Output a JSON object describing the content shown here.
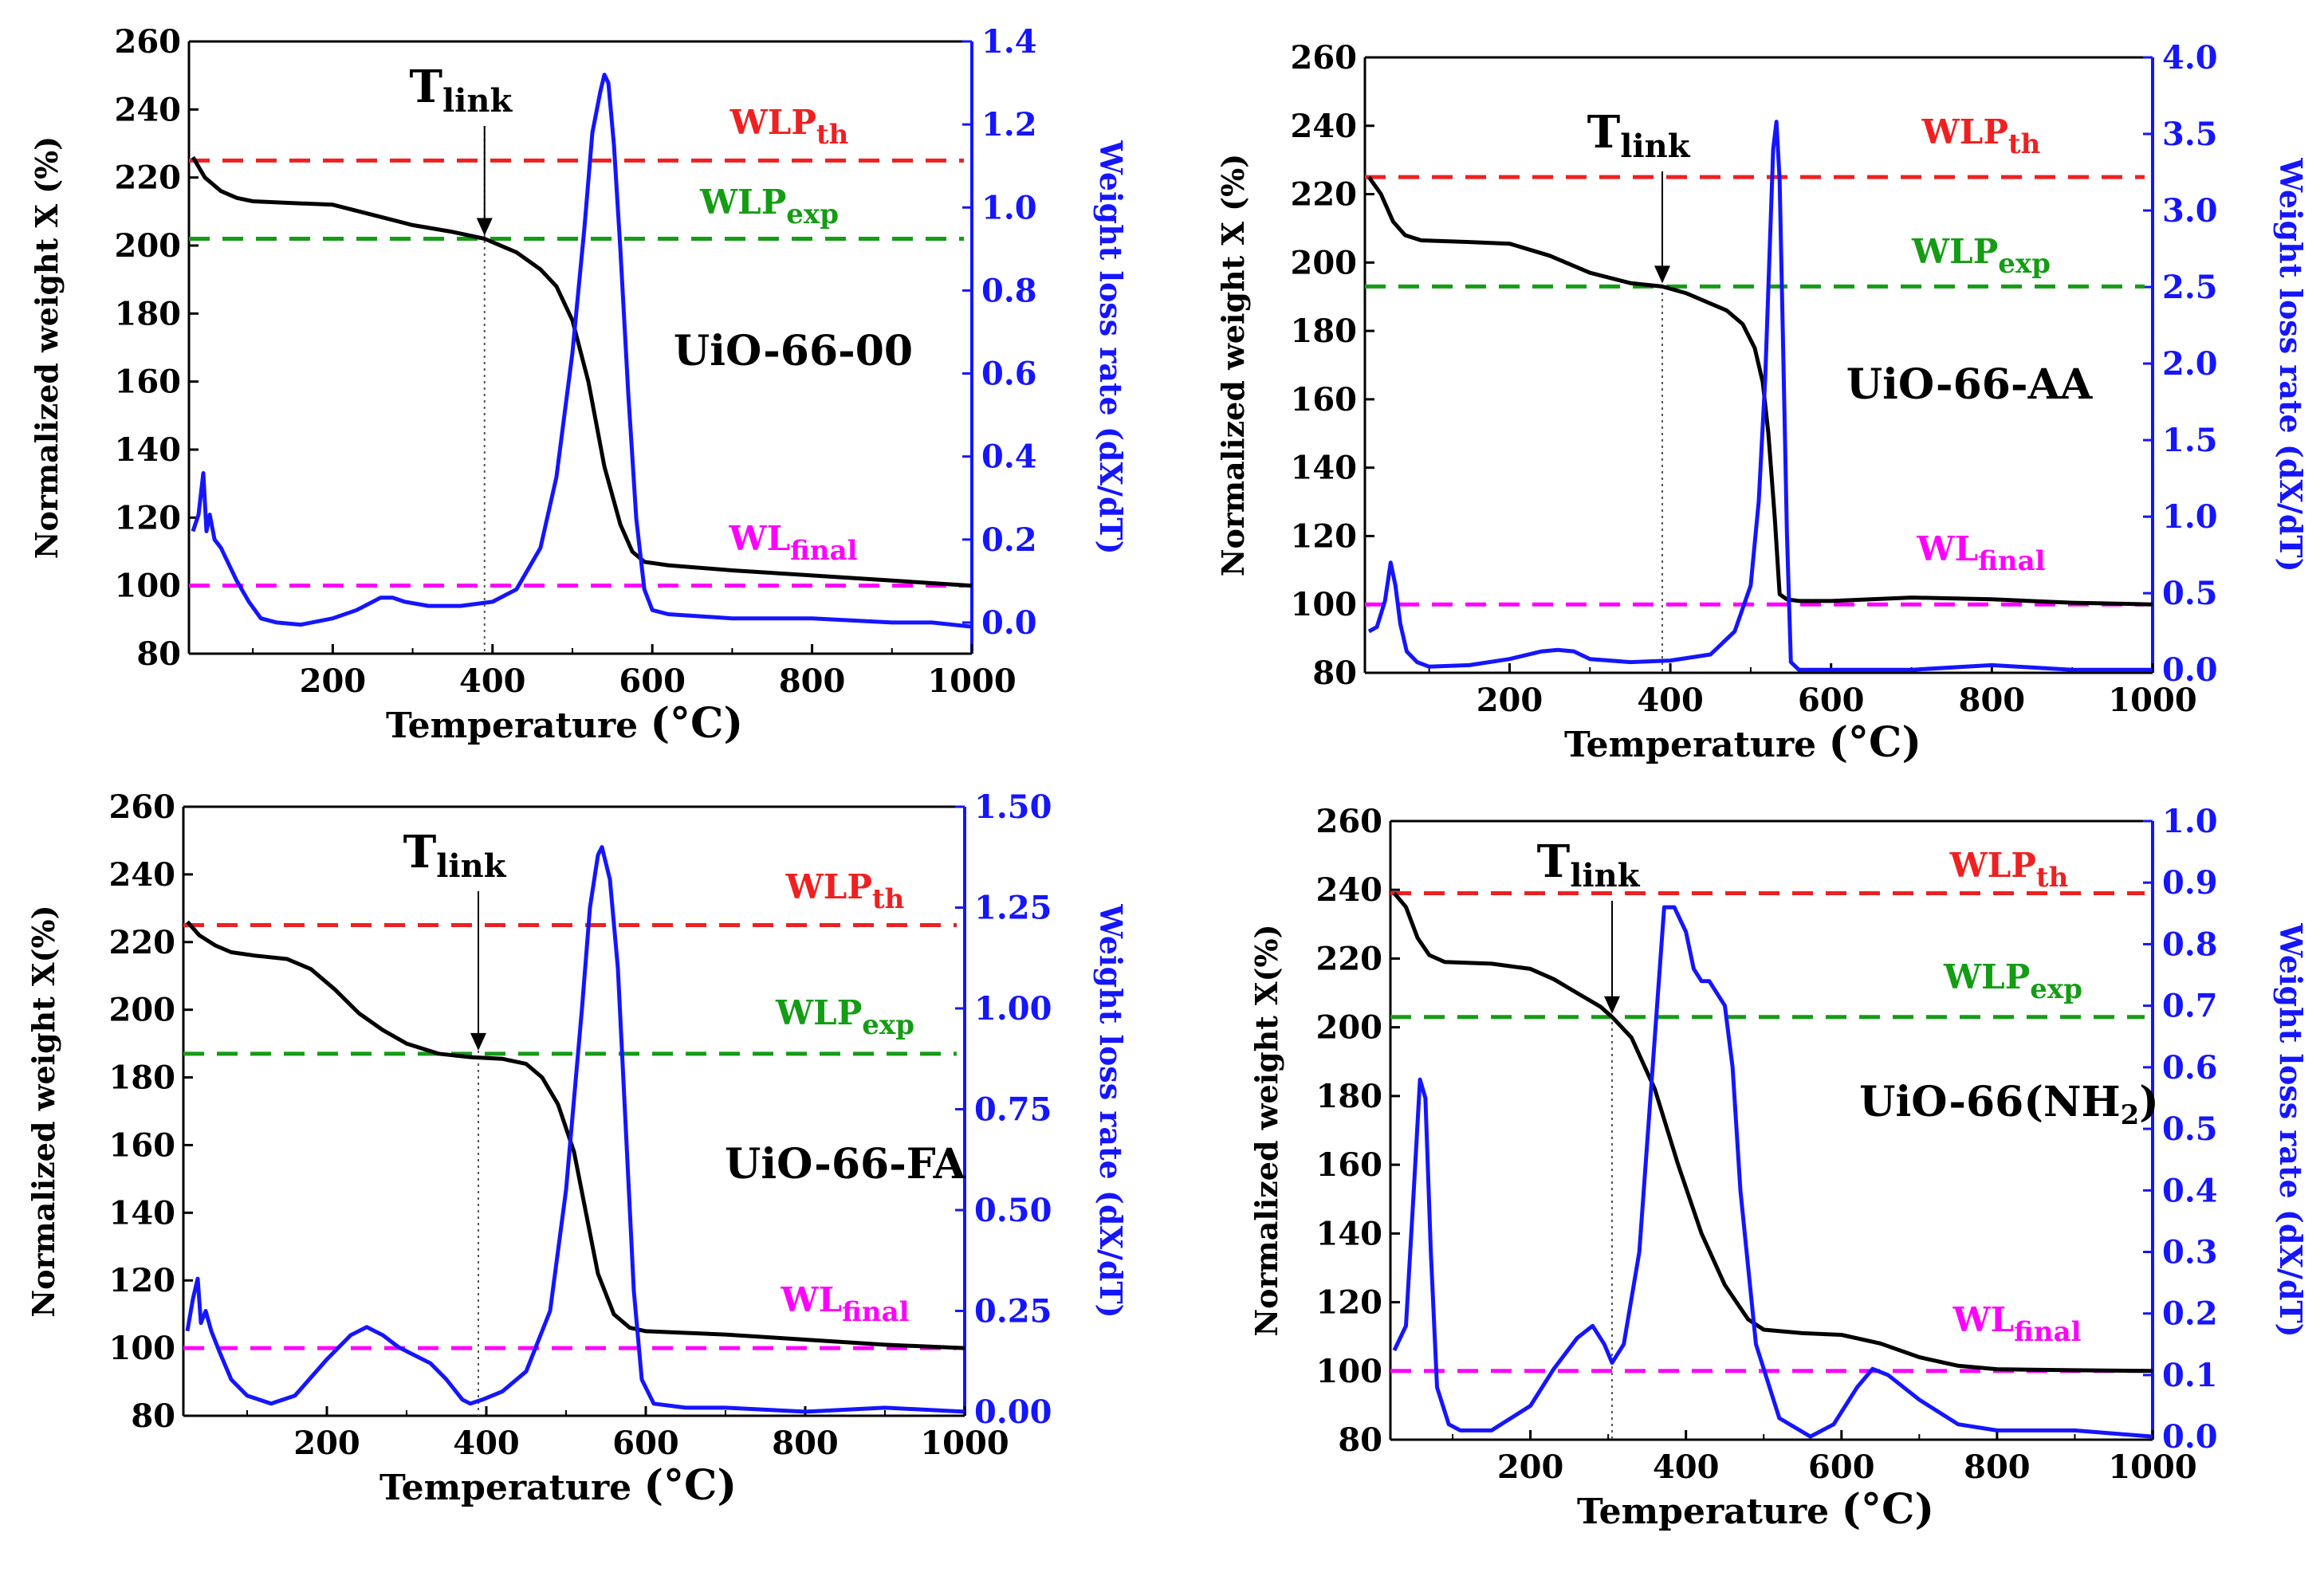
{
  "chart_data": [
    {
      "type": "line",
      "name": "UiO-66-00",
      "xlabel": "Temperature",
      "xunit": "(°C)",
      "ylabel": "Normalized weight X (%)",
      "y2label": "Weight loss rate (dX/dT)",
      "xlim": [
        20,
        1000
      ],
      "ylim": [
        80,
        260
      ],
      "y2lim": [
        -0.075,
        1.4
      ],
      "xticks": [
        "200",
        "400",
        "600",
        "800",
        "1000"
      ],
      "yticks": [
        "80",
        "100",
        "120",
        "140",
        "160",
        "180",
        "200",
        "220",
        "240",
        "260"
      ],
      "y2ticks": [
        "0.0",
        "0.2",
        "0.4",
        "0.6",
        "0.8",
        "1.0",
        "1.2",
        "1.4"
      ],
      "lines": {
        "WLP_th": 225,
        "WLP_exp": 202,
        "WL_final": 100
      },
      "t_link": 390,
      "labels": {
        "tlink": "T",
        "tlink_sub": "link",
        "wlpth": "WLP",
        "wlpth_sub": "th",
        "wlpexp": "WLP",
        "wlpexp_sub": "exp",
        "wlfinal": "WL",
        "wlfinal_sub": "final"
      },
      "series": [
        {
          "name": "Normalized weight",
          "axis": "left",
          "color": "#000000",
          "x": [
            25,
            40,
            60,
            80,
            100,
            150,
            200,
            250,
            300,
            350,
            390,
            430,
            460,
            480,
            500,
            520,
            540,
            560,
            575,
            590,
            620,
            700,
            800,
            900,
            1000
          ],
          "y": [
            226,
            220,
            216,
            214,
            213,
            212.5,
            212,
            209,
            206,
            204,
            202,
            198,
            193,
            188,
            178,
            160,
            135,
            118,
            110,
            107,
            106,
            104.5,
            103,
            101.5,
            100
          ]
        },
        {
          "name": "Weight loss rate",
          "axis": "right",
          "color": "#1515ff",
          "x": [
            25,
            32,
            38,
            42,
            46,
            52,
            60,
            70,
            80,
            95,
            110,
            130,
            160,
            200,
            230,
            260,
            275,
            290,
            320,
            360,
            400,
            430,
            460,
            480,
            500,
            515,
            525,
            535,
            540,
            545,
            552,
            560,
            570,
            580,
            590,
            600,
            620,
            700,
            800,
            900,
            950,
            1000
          ],
          "y": [
            0.22,
            0.26,
            0.36,
            0.22,
            0.26,
            0.2,
            0.18,
            0.14,
            0.1,
            0.05,
            0.01,
            0.0,
            -0.005,
            0.01,
            0.03,
            0.06,
            0.06,
            0.05,
            0.04,
            0.04,
            0.05,
            0.08,
            0.18,
            0.35,
            0.65,
            0.95,
            1.18,
            1.28,
            1.32,
            1.3,
            1.15,
            0.9,
            0.55,
            0.25,
            0.08,
            0.03,
            0.02,
            0.01,
            0.01,
            0.0,
            0.0,
            -0.01
          ]
        }
      ]
    },
    {
      "type": "line",
      "name": "UiO-66-AA",
      "xlabel": "Temperature",
      "xunit": "(°C)",
      "ylabel": "Normalized weight X (%)",
      "y2label": "Weight loss rate (dX/dT)",
      "xlim": [
        20,
        1000
      ],
      "ylim": [
        80,
        260
      ],
      "y2lim": [
        -0.02,
        4.0
      ],
      "xticks": [
        "200",
        "400",
        "600",
        "800",
        "1000"
      ],
      "yticks": [
        "80",
        "100",
        "120",
        "140",
        "160",
        "180",
        "200",
        "220",
        "240",
        "260"
      ],
      "y2ticks": [
        "0.0",
        "0.5",
        "1.0",
        "1.5",
        "2.0",
        "2.5",
        "3.0",
        "3.5",
        "4.0"
      ],
      "lines": {
        "WLP_th": 225,
        "WLP_exp": 193,
        "WL_final": 100
      },
      "t_link": 390,
      "labels": {
        "tlink": "T",
        "tlink_sub": "link",
        "wlpth": "WLP",
        "wlpth_sub": "th",
        "wlpexp": "WLP",
        "wlpexp_sub": "exp",
        "wlfinal": "WL",
        "wlfinal_sub": "final"
      },
      "series": [
        {
          "name": "Normalized weight",
          "axis": "left",
          "color": "#000000",
          "x": [
            25,
            40,
            55,
            70,
            90,
            150,
            200,
            250,
            300,
            350,
            390,
            420,
            450,
            470,
            490,
            505,
            515,
            522,
            530,
            536,
            545,
            560,
            600,
            700,
            800,
            900,
            1000
          ],
          "y": [
            225,
            220,
            212,
            208,
            206.5,
            206,
            205.5,
            202,
            197,
            194,
            193,
            191,
            188,
            186,
            182,
            175,
            165,
            150,
            125,
            103,
            101.5,
            101,
            101,
            102,
            101.5,
            100.5,
            100
          ]
        },
        {
          "name": "Weight loss rate",
          "axis": "right",
          "color": "#1515ff",
          "x": [
            25,
            35,
            45,
            52,
            58,
            64,
            72,
            85,
            100,
            150,
            200,
            240,
            260,
            280,
            300,
            350,
            400,
            450,
            480,
            500,
            510,
            518,
            524,
            528,
            532,
            536,
            540,
            545,
            550,
            560,
            600,
            700,
            800,
            900,
            1000
          ],
          "y": [
            0.25,
            0.28,
            0.45,
            0.7,
            0.55,
            0.3,
            0.12,
            0.05,
            0.02,
            0.03,
            0.07,
            0.12,
            0.13,
            0.12,
            0.07,
            0.05,
            0.06,
            0.1,
            0.25,
            0.55,
            1.1,
            1.9,
            2.8,
            3.4,
            3.58,
            3.2,
            2.2,
            0.9,
            0.05,
            0.0,
            0.0,
            0.0,
            0.03,
            0.0,
            0.0
          ]
        }
      ]
    },
    {
      "type": "line",
      "name": "UiO-66-FA",
      "xlabel": "Temperature",
      "xunit": "(°C)",
      "ylabel": "Normalized weight X(%)",
      "y2label": "Weight loss rate (dX/dT)",
      "xlim": [
        20,
        1000
      ],
      "ylim": [
        80,
        260
      ],
      "y2lim": [
        -0.01,
        1.5
      ],
      "xticks": [
        "200",
        "400",
        "600",
        "800",
        "1000"
      ],
      "yticks": [
        "80",
        "100",
        "120",
        "140",
        "160",
        "180",
        "200",
        "220",
        "240",
        "260"
      ],
      "y2ticks": [
        "0.00",
        "0.25",
        "0.50",
        "0.75",
        "1.00",
        "1.25",
        "1.50"
      ],
      "lines": {
        "WLP_th": 225,
        "WLP_exp": 187,
        "WL_final": 100
      },
      "t_link": 390,
      "labels": {
        "tlink": "T",
        "tlink_sub": "link",
        "wlpth": "WLP",
        "wlpth_sub": "th",
        "wlpexp": "WLP",
        "wlpexp_sub": "exp",
        "wlfinal": "WL",
        "wlfinal_sub": "final"
      },
      "series": [
        {
          "name": "Normalized weight",
          "axis": "left",
          "color": "#000000",
          "x": [
            25,
            40,
            60,
            80,
            110,
            150,
            180,
            210,
            240,
            270,
            300,
            340,
            380,
            420,
            450,
            470,
            490,
            510,
            525,
            540,
            560,
            580,
            600,
            650,
            700,
            800,
            900,
            1000
          ],
          "y": [
            226,
            222,
            219,
            217,
            216,
            215,
            212,
            206,
            199,
            194,
            190,
            187,
            186,
            185.5,
            184,
            180,
            172,
            158,
            140,
            122,
            110,
            106,
            105,
            104.5,
            104,
            102.5,
            101,
            100
          ]
        },
        {
          "name": "Weight loss rate",
          "axis": "right",
          "color": "#1515ff",
          "x": [
            25,
            32,
            38,
            42,
            48,
            55,
            65,
            80,
            100,
            130,
            160,
            200,
            230,
            250,
            270,
            290,
            310,
            330,
            350,
            370,
            380,
            395,
            420,
            450,
            480,
            500,
            520,
            530,
            540,
            545,
            555,
            565,
            575,
            585,
            595,
            610,
            650,
            700,
            800,
            900,
            1000
          ],
          "y": [
            0.2,
            0.28,
            0.33,
            0.22,
            0.25,
            0.2,
            0.15,
            0.08,
            0.04,
            0.02,
            0.04,
            0.13,
            0.19,
            0.21,
            0.19,
            0.16,
            0.14,
            0.12,
            0.08,
            0.03,
            0.02,
            0.03,
            0.05,
            0.1,
            0.25,
            0.55,
            1.0,
            1.25,
            1.38,
            1.4,
            1.32,
            1.1,
            0.7,
            0.3,
            0.08,
            0.02,
            0.01,
            0.01,
            0.0,
            0.01,
            0.0
          ]
        }
      ]
    },
    {
      "type": "line",
      "name": "UiO-66(NH",
      "name_sub": "2",
      "name_end": ")",
      "xlabel": "Temperature",
      "xunit": "(°C)",
      "ylabel": "Normalized weight X(%)",
      "y2label": "Weight loss rate (dX/dT)",
      "xlim": [
        20,
        1000
      ],
      "ylim": [
        80,
        260
      ],
      "y2lim": [
        -0.005,
        1.0
      ],
      "xticks": [
        "200",
        "400",
        "600",
        "800",
        "1000"
      ],
      "yticks": [
        "80",
        "100",
        "120",
        "140",
        "160",
        "180",
        "200",
        "220",
        "240",
        "260"
      ],
      "y2ticks": [
        "0.0",
        "0.1",
        "0.2",
        "0.3",
        "0.4",
        "0.5",
        "0.6",
        "0.7",
        "0.8",
        "0.9",
        "1.0"
      ],
      "lines": {
        "WLP_th": 239,
        "WLP_exp": 203,
        "WL_final": 100
      },
      "t_link": 305,
      "labels": {
        "tlink": "T",
        "tlink_sub": "link",
        "wlpth": "WLP",
        "wlpth_sub": "th",
        "wlpexp": "WLP",
        "wlpexp_sub": "exp",
        "wlfinal": "WL",
        "wlfinal_sub": "final"
      },
      "series": [
        {
          "name": "Normalized weight",
          "axis": "left",
          "color": "#000000",
          "x": [
            25,
            40,
            55,
            70,
            90,
            150,
            200,
            230,
            260,
            290,
            305,
            330,
            360,
            390,
            420,
            450,
            480,
            500,
            550,
            600,
            650,
            700,
            750,
            800,
            900,
            1000
          ],
          "y": [
            239,
            235,
            226,
            221,
            219,
            218.5,
            217,
            214,
            210,
            206,
            203,
            197,
            182,
            160,
            140,
            125,
            115,
            112,
            111,
            110.5,
            108,
            104,
            101.5,
            100.5,
            100.2,
            100
          ]
        },
        {
          "name": "Weight loss rate",
          "axis": "right",
          "color": "#1515ff",
          "x": [
            25,
            40,
            50,
            58,
            65,
            72,
            80,
            95,
            110,
            150,
            200,
            230,
            260,
            280,
            295,
            305,
            320,
            340,
            360,
            372,
            385,
            400,
            410,
            420,
            430,
            440,
            450,
            460,
            470,
            490,
            520,
            560,
            590,
            620,
            640,
            660,
            700,
            750,
            800,
            900,
            1000
          ],
          "y": [
            0.14,
            0.18,
            0.4,
            0.58,
            0.55,
            0.3,
            0.08,
            0.02,
            0.01,
            0.01,
            0.05,
            0.11,
            0.16,
            0.18,
            0.15,
            0.12,
            0.15,
            0.3,
            0.65,
            0.86,
            0.86,
            0.82,
            0.76,
            0.74,
            0.74,
            0.72,
            0.7,
            0.6,
            0.4,
            0.15,
            0.03,
            0.0,
            0.02,
            0.08,
            0.11,
            0.1,
            0.06,
            0.02,
            0.01,
            0.01,
            0.0
          ]
        }
      ]
    }
  ]
}
